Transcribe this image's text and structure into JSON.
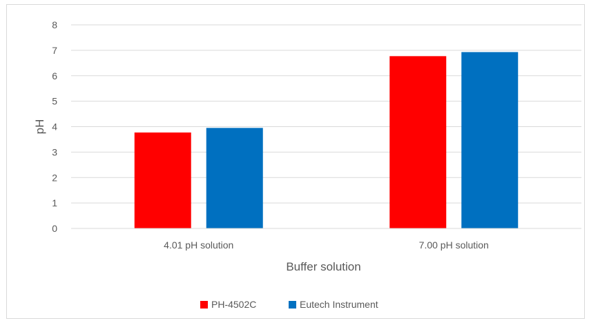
{
  "chart_data": {
    "type": "bar",
    "title": "",
    "xlabel": "Buffer solution",
    "ylabel": "pH",
    "categories": [
      "4.01 pH solution",
      "7.00 pH solution"
    ],
    "series": [
      {
        "name": "PH-4502C",
        "color": "#ff0000",
        "values": [
          3.77,
          6.77
        ]
      },
      {
        "name": "Eutech Instrument",
        "color": "#0070c0",
        "values": [
          3.95,
          6.93
        ]
      }
    ],
    "ylim": [
      0,
      8
    ],
    "yticks": [
      "0",
      "1",
      "2",
      "3",
      "4",
      "5",
      "6",
      "7",
      "8"
    ],
    "grid": true,
    "legend_position": "bottom"
  }
}
